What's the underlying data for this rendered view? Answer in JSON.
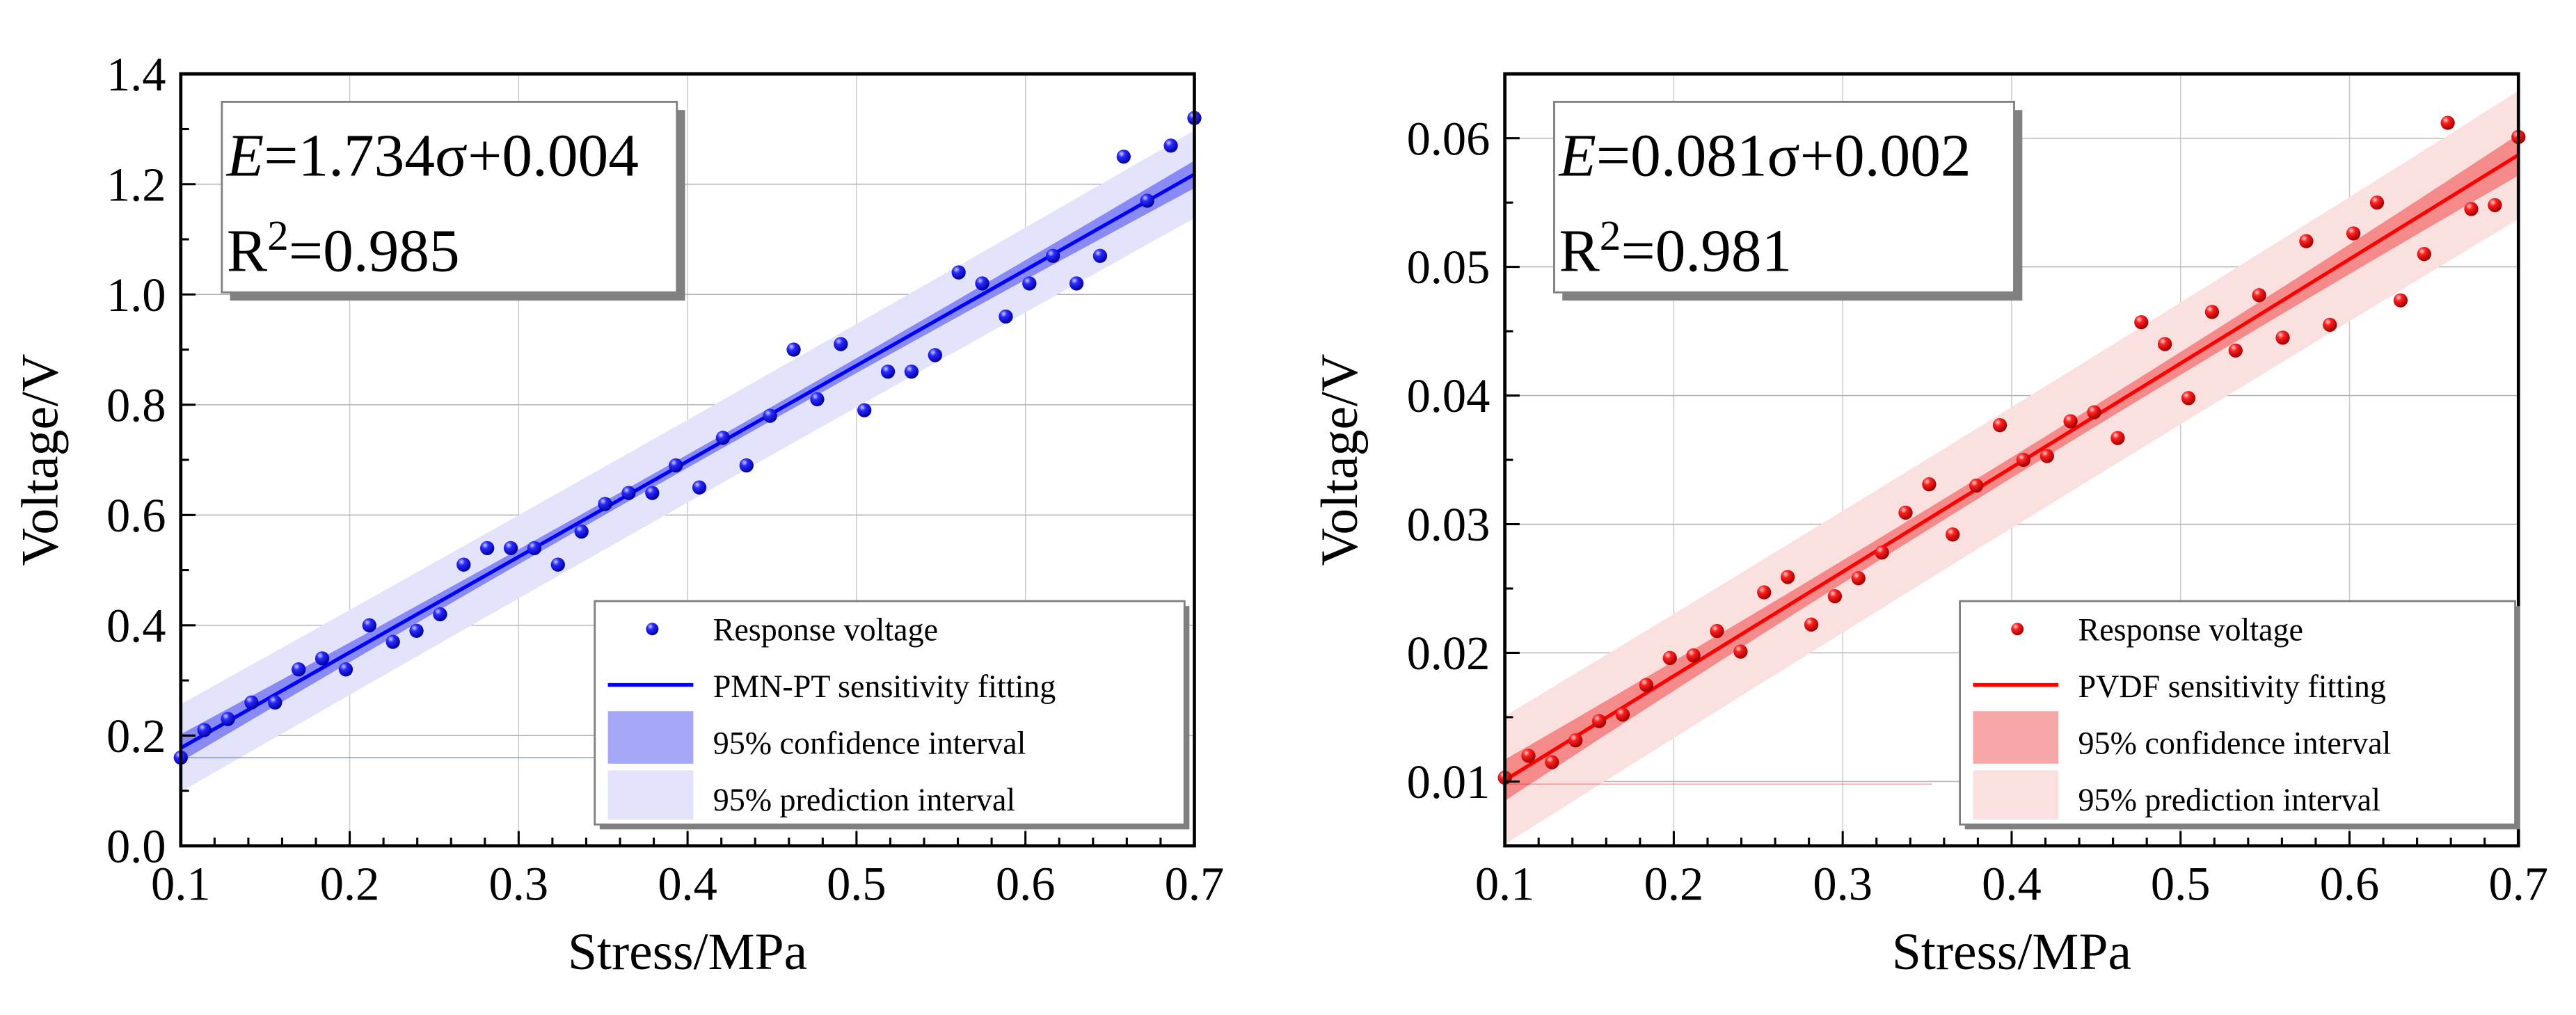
{
  "chart_data": [
    {
      "type": "scatter",
      "id": "pmn",
      "title": "",
      "xlabel": "Stress/MPa",
      "ylabel": "Voltage/V",
      "xlim": [
        0.1,
        0.7
      ],
      "ylim": [
        0.0,
        1.4
      ],
      "xticks": [
        0.1,
        0.2,
        0.3,
        0.4,
        0.5,
        0.6,
        0.7
      ],
      "xtick_labels": [
        "0.1",
        "0.2",
        "0.3",
        "0.4",
        "0.5",
        "0.6",
        "0.7"
      ],
      "yticks": [
        0.0,
        0.2,
        0.4,
        0.6,
        0.8,
        1.0,
        1.2,
        1.4
      ],
      "ytick_labels": [
        "0.0",
        "0.2",
        "0.4",
        "0.6",
        "0.8",
        "1.0",
        "1.2",
        "1.4"
      ],
      "grid": true,
      "color": "#0000ff",
      "ci_color": "#8a8af5",
      "pi_color": "#e3e3fb",
      "equation": {
        "lhs": "E",
        "rhs": "=1.734σ+0.004",
        "r2_label": "R",
        "r2_sup": "2",
        "r2_value": "=0.985"
      },
      "fit": {
        "slope": 1.734,
        "intercept": 0.004,
        "ci_halfwidth_end": 0.025,
        "ci_halfwidth_mid": 0.012,
        "pi_halfwidth": 0.075
      },
      "legend": {
        "placement": "bottom-right",
        "entries": [
          "Response voltage",
          "PMN-PT sensitivity fitting",
          "95% confidence interval",
          "95% prediction interval"
        ]
      },
      "series": [
        {
          "name": "Response voltage",
          "y": [
            0.16,
            0.21,
            0.23,
            0.26,
            0.26,
            0.32,
            0.34,
            0.32,
            0.4,
            0.37,
            0.39,
            0.42,
            0.51,
            0.54,
            0.54,
            0.54,
            0.51,
            0.57,
            0.62,
            0.64,
            0.64,
            0.69,
            0.65,
            0.74,
            0.69,
            0.78,
            0.9,
            0.81,
            0.91,
            0.79,
            0.86,
            0.86,
            0.89,
            1.04,
            1.02,
            0.96,
            1.02,
            1.07,
            1.02,
            1.07,
            1.25,
            1.17,
            1.27,
            1.32
          ]
        }
      ]
    },
    {
      "type": "scatter",
      "id": "pvdf",
      "title": "",
      "xlabel": "Stress/MPa",
      "ylabel": "Voltage/V",
      "xlim": [
        0.1,
        0.7
      ],
      "ylim": [
        0.005,
        0.065
      ],
      "xticks": [
        0.1,
        0.2,
        0.3,
        0.4,
        0.5,
        0.6,
        0.7
      ],
      "xtick_labels": [
        "0.1",
        "0.2",
        "0.3",
        "0.4",
        "0.5",
        "0.6",
        "0.7"
      ],
      "yticks": [
        0.01,
        0.02,
        0.03,
        0.04,
        0.05,
        0.06
      ],
      "ytick_labels": [
        "0.01",
        "0.02",
        "0.03",
        "0.04",
        "0.05",
        "0.06"
      ],
      "grid": true,
      "color": "#ff0000",
      "ci_color": "#f58a8a",
      "pi_color": "#fbe0e0",
      "equation": {
        "lhs": "E",
        "rhs": "=0.081σ+0.002",
        "r2_label": "R",
        "r2_sup": "2",
        "r2_value": "=0.981"
      },
      "fit": {
        "slope": 0.081,
        "intercept": 0.002,
        "ci_halfwidth_end": 0.0016,
        "ci_halfwidth_mid": 0.0008,
        "pi_halfwidth": 0.0047
      },
      "legend": {
        "placement": "bottom-right",
        "entries": [
          "Response voltage",
          "PVDF sensitivity fitting",
          "95% confidence interval",
          "95% prediction interval"
        ]
      },
      "series": [
        {
          "name": "Response voltage",
          "y": [
            0.0103,
            0.012,
            0.0115,
            0.0132,
            0.0147,
            0.0152,
            0.0175,
            0.0196,
            0.0198,
            0.0217,
            0.0201,
            0.0247,
            0.0259,
            0.0222,
            0.0244,
            0.0258,
            0.0278,
            0.0309,
            0.0331,
            0.0292,
            0.033,
            0.0377,
            0.035,
            0.0353,
            0.038,
            0.0387,
            0.0367,
            0.0457,
            0.044,
            0.0398,
            0.0465,
            0.0435,
            0.0478,
            0.0445,
            0.052,
            0.0455,
            0.0526,
            0.055,
            0.0474,
            0.051,
            0.0612,
            0.0545,
            0.0548,
            0.0601
          ]
        }
      ]
    }
  ]
}
